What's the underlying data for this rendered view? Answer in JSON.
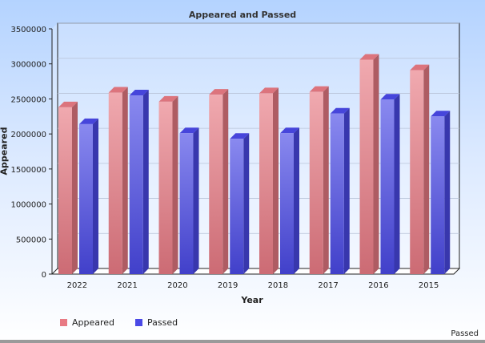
{
  "chart_data": {
    "type": "bar",
    "title": "Appeared and Passed",
    "xlabel": "Year",
    "ylabel": "Appeared",
    "categories": [
      "2022",
      "2021",
      "2020",
      "2019",
      "2018",
      "2017",
      "2016",
      "2015"
    ],
    "series": [
      {
        "name": "Appeared",
        "color": "#e87a84",
        "values": [
          2380000,
          2590000,
          2460000,
          2560000,
          2580000,
          2600000,
          3060000,
          2910000
        ]
      },
      {
        "name": "Passed",
        "color": "#4a49e6",
        "values": [
          2140000,
          2550000,
          2010000,
          1930000,
          2010000,
          2290000,
          2490000,
          2250000
        ]
      }
    ],
    "ylim": [
      0,
      3500000
    ],
    "yticks": [
      "0",
      "500000",
      "1000000",
      "1500000",
      "2000000",
      "2500000",
      "3000000",
      "3500000"
    ],
    "grid": true,
    "legend_placement": "bottom-left"
  },
  "corner_note": "Passed"
}
